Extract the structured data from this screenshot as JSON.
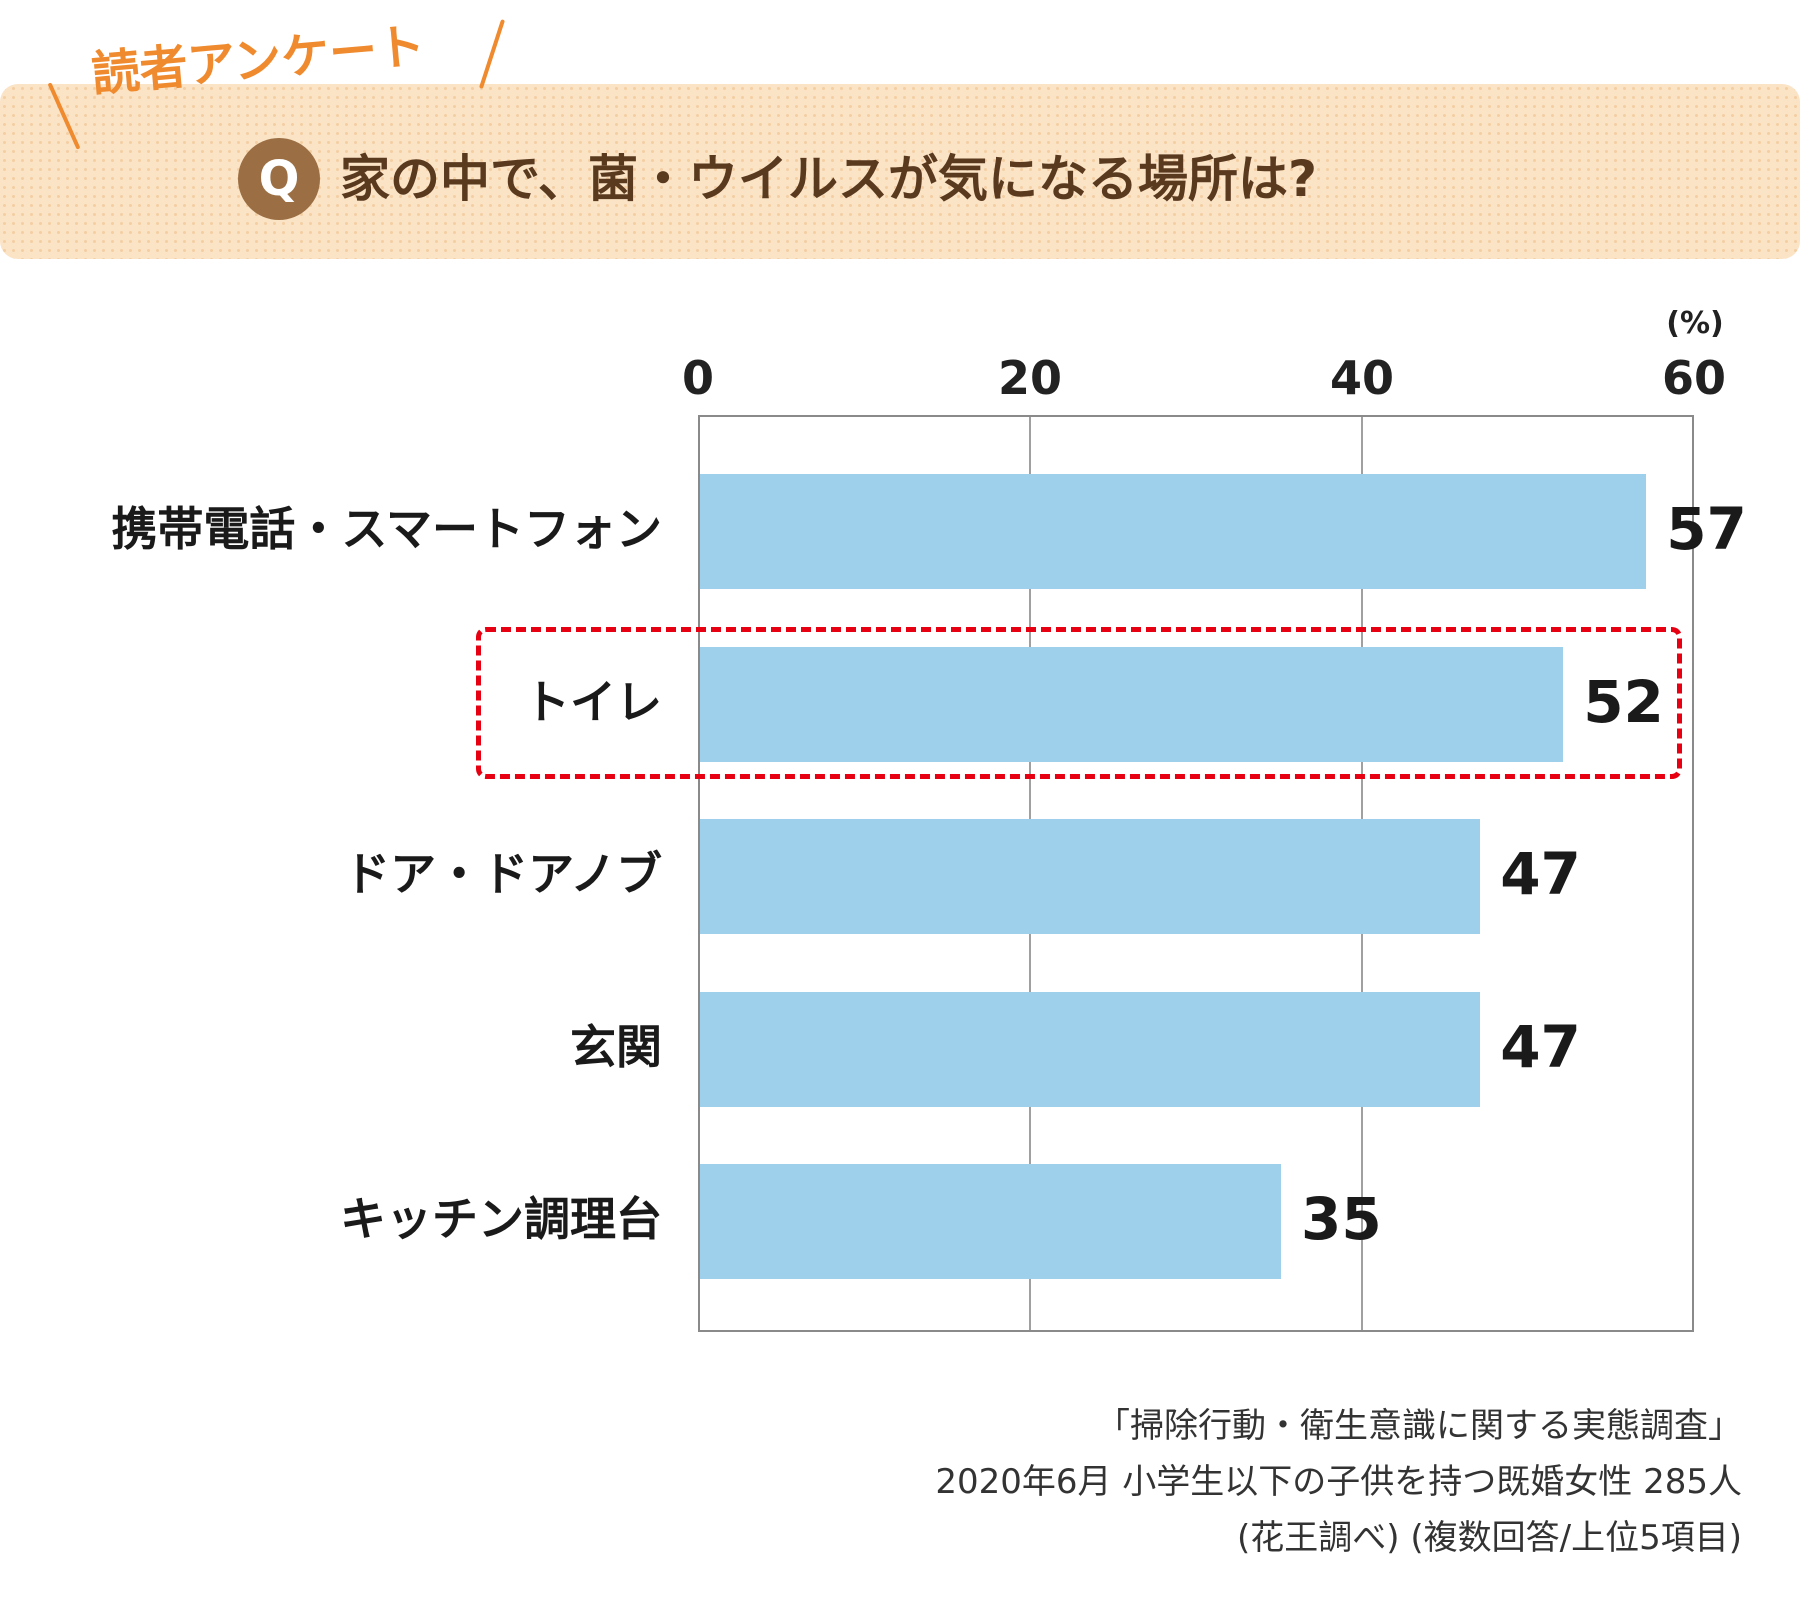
{
  "header": {
    "survey_label": "読者アンケート",
    "q_badge": "Q",
    "question": "家の中で、菌・ウイルスが気になる場所は?"
  },
  "chart_data": {
    "type": "bar",
    "orientation": "horizontal",
    "categories": [
      "携帯電話・スマートフォン",
      "トイレ",
      "ドア・ドアノブ",
      "玄関",
      "キッチン調理台"
    ],
    "values": [
      57,
      52,
      47,
      47,
      35
    ],
    "xlim": [
      0,
      60
    ],
    "xticks": [
      "0",
      "20",
      "40",
      "60"
    ],
    "unit": "(%)",
    "highlighted": "トイレ",
    "grid": true
  },
  "footnote": {
    "line1": "「掃除行動・衛生意識に関する実態調査」",
    "line2": "2020年6月 小学生以下の子供を持つ既婚女性 285人",
    "line3": "(花王調べ) (複数回答/上位5項目)"
  },
  "colors": {
    "bar": "#9fd0eb",
    "highlight_border": "#e60012",
    "banner_bg": "#fbe3c6",
    "badge": "#9b6f43",
    "survey_label": "#ef8a2e",
    "question_text": "#5a3a1f"
  }
}
